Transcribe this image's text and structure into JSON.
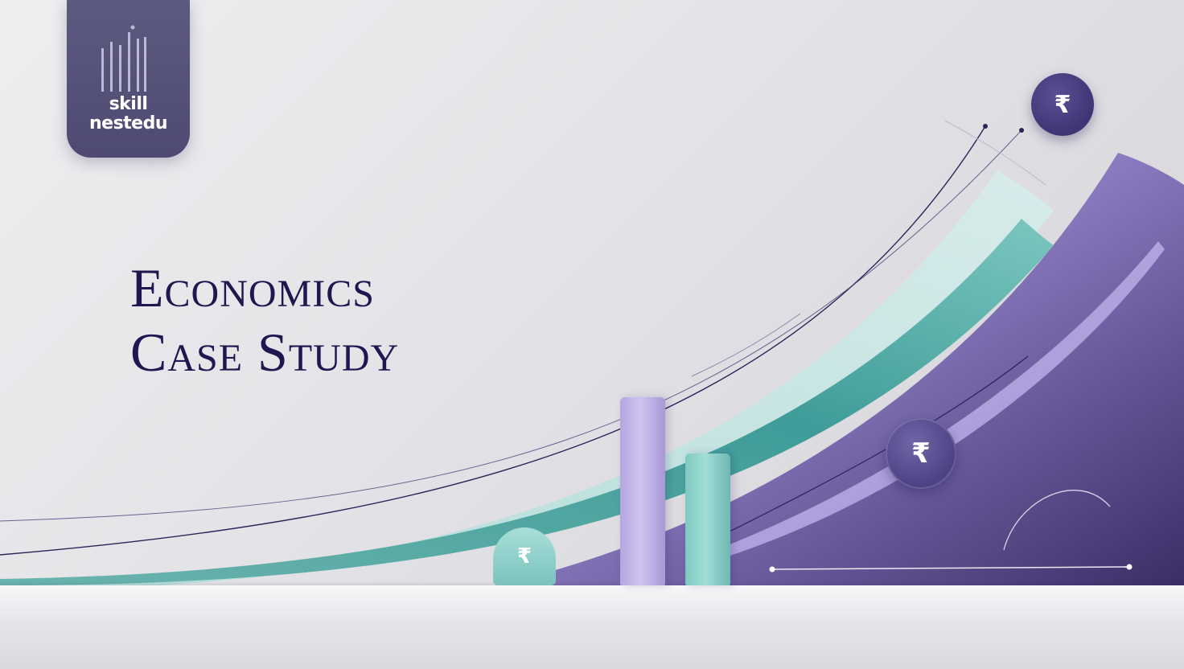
{
  "logo": {
    "line1": "skill",
    "line2": "nestedu",
    "icon": "signal-bars-icon"
  },
  "title": {
    "line1": "Economics",
    "line2": "Case Study"
  },
  "coins": {
    "top": "₹",
    "middle": "₹",
    "small": "₹"
  },
  "colors": {
    "navy": "#1e1850",
    "logo_card": "#56537a",
    "teal": "#5fb3ad",
    "lavender": "#b9a8e3",
    "deep_purple": "#3d3168"
  }
}
